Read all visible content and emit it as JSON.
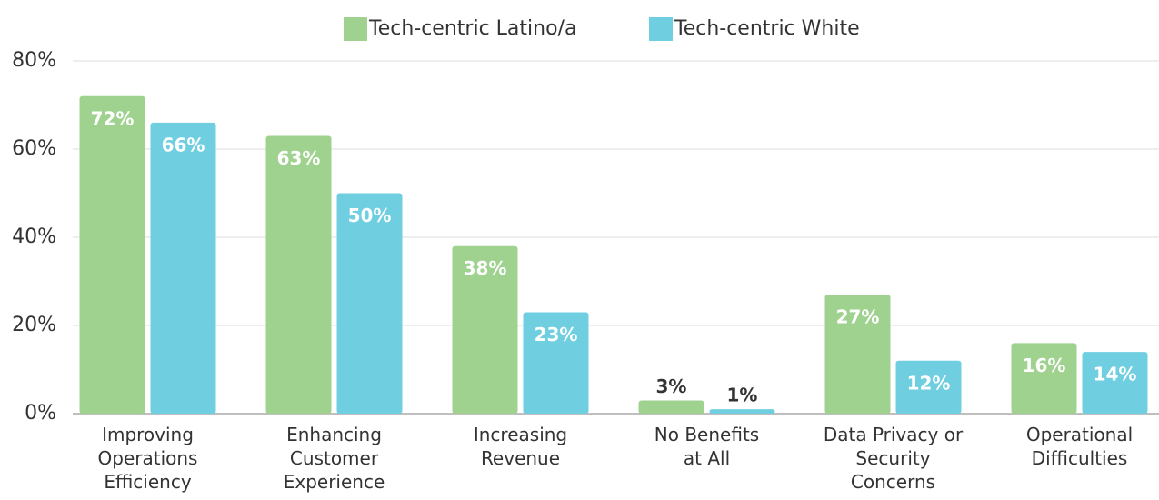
{
  "chart_data": {
    "type": "bar",
    "categories": [
      "Improving\nOperations\nEfficiency",
      "Enhancing\nCustomer\nExperience",
      "Increasing\nRevenue",
      "No Benefits\nat All",
      "Data Privacy or\nSecurity\nConcerns",
      "Operational\nDifficulties"
    ],
    "series": [
      {
        "name": "Tech-centric Latino/a",
        "color": "#9fd28f",
        "values": [
          72,
          63,
          38,
          3,
          27,
          16
        ],
        "value_labels": [
          "72%",
          "63%",
          "38%",
          "3%",
          "27%",
          "16%"
        ]
      },
      {
        "name": "Tech-centric White",
        "color": "#6fcfe0",
        "values": [
          66,
          50,
          23,
          1,
          12,
          14
        ],
        "value_labels": [
          "66%",
          "50%",
          "23%",
          "1%",
          "12%",
          "14%"
        ]
      }
    ],
    "ylim": [
      0,
      80
    ],
    "yticks": [
      {
        "value": 0,
        "label": "0%"
      },
      {
        "value": 20,
        "label": "20%"
      },
      {
        "value": 40,
        "label": "40%"
      },
      {
        "value": 60,
        "label": "60%"
      },
      {
        "value": 80,
        "label": "80%"
      }
    ],
    "grid": true,
    "legend": "top"
  }
}
